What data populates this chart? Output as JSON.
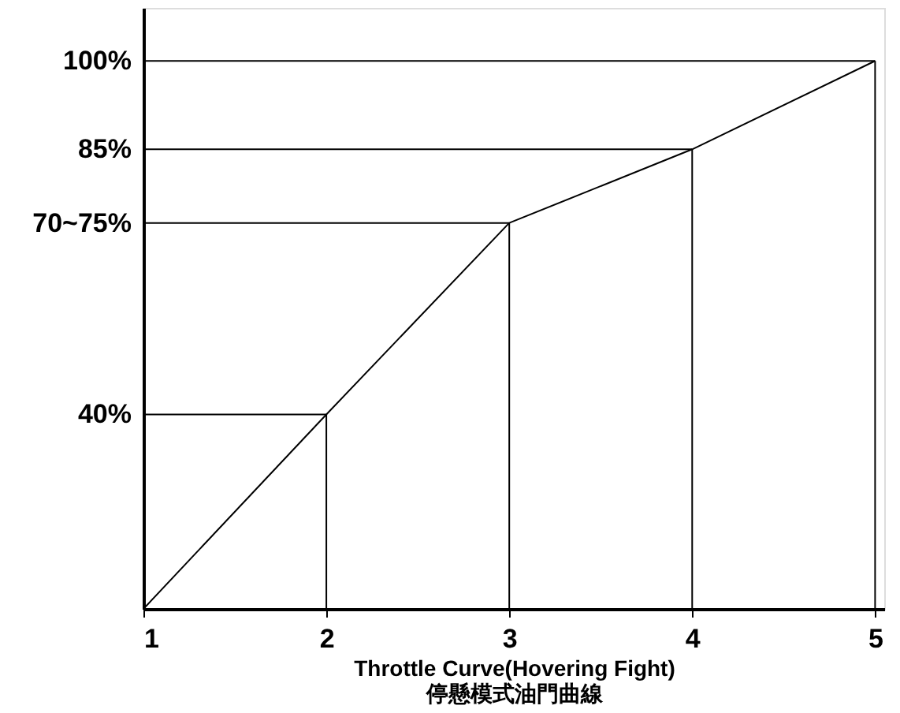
{
  "chart_data": {
    "type": "line",
    "x": [
      1,
      2,
      3,
      4,
      5
    ],
    "series": [
      {
        "color": "#000000",
        "values": [
          7,
          40,
          72.5,
          85,
          100
        ]
      }
    ],
    "xlim": [
      1,
      5.05
    ],
    "xticks": [
      1,
      2,
      3,
      4,
      5
    ],
    "ylim": [
      7,
      109
    ],
    "yticks": [
      {
        "value": 40,
        "label": "40%"
      },
      {
        "value": 72.5,
        "label": "70~75%"
      },
      {
        "value": 85,
        "label": "85%"
      },
      {
        "value": 100,
        "label": "100%"
      }
    ],
    "xlabel": "Throttle Curve(Hovering Fight)\n停懸模式油門曲線",
    "ref_lines": [
      {
        "axis": "x",
        "value": 2
      },
      {
        "axis": "x",
        "value": 3
      },
      {
        "axis": "x",
        "value": 4
      },
      {
        "axis": "x",
        "value": 5
      },
      {
        "axis": "y",
        "value": 40
      },
      {
        "axis": "y",
        "value": 72.5
      },
      {
        "axis": "y",
        "value": 85
      },
      {
        "axis": "y",
        "value": 100
      }
    ],
    "marker": "none",
    "line_style": "solid"
  }
}
